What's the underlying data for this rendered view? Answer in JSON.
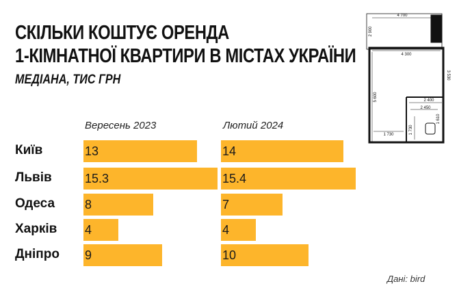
{
  "title": {
    "line1": "СКІЛЬКИ КОШТУЄ ОРЕНДА",
    "line2": "1-КІМНАТНОЇ КВАРТИРИ В МІСТАХ УКРАЇНИ"
  },
  "subtitle": "МЕДІАНА, ТИС ГРН",
  "source": "Дані: bird",
  "chart_data": {
    "type": "bar",
    "orientation": "horizontal",
    "categories": [
      "Київ",
      "Львів",
      "Одеса",
      "Харків",
      "Дніпро"
    ],
    "series": [
      {
        "name": "Вересень 2023",
        "values": [
          13,
          15.3,
          8,
          4,
          9
        ],
        "labels": [
          "13",
          "15.3",
          "8",
          "4",
          "9"
        ]
      },
      {
        "name": "Лютий 2024",
        "values": [
          14,
          15.4,
          7,
          4,
          10
        ],
        "labels": [
          "14",
          "15.4",
          "7",
          "4",
          "10"
        ]
      }
    ],
    "color": "#FDB52B",
    "grid": false
  },
  "floorplan": {
    "dimensions": [
      "4 700",
      "2 900",
      "4 300",
      "3 530",
      "5 600",
      "2 400",
      "2 450",
      "1 610",
      "1 730",
      "1 730"
    ]
  }
}
